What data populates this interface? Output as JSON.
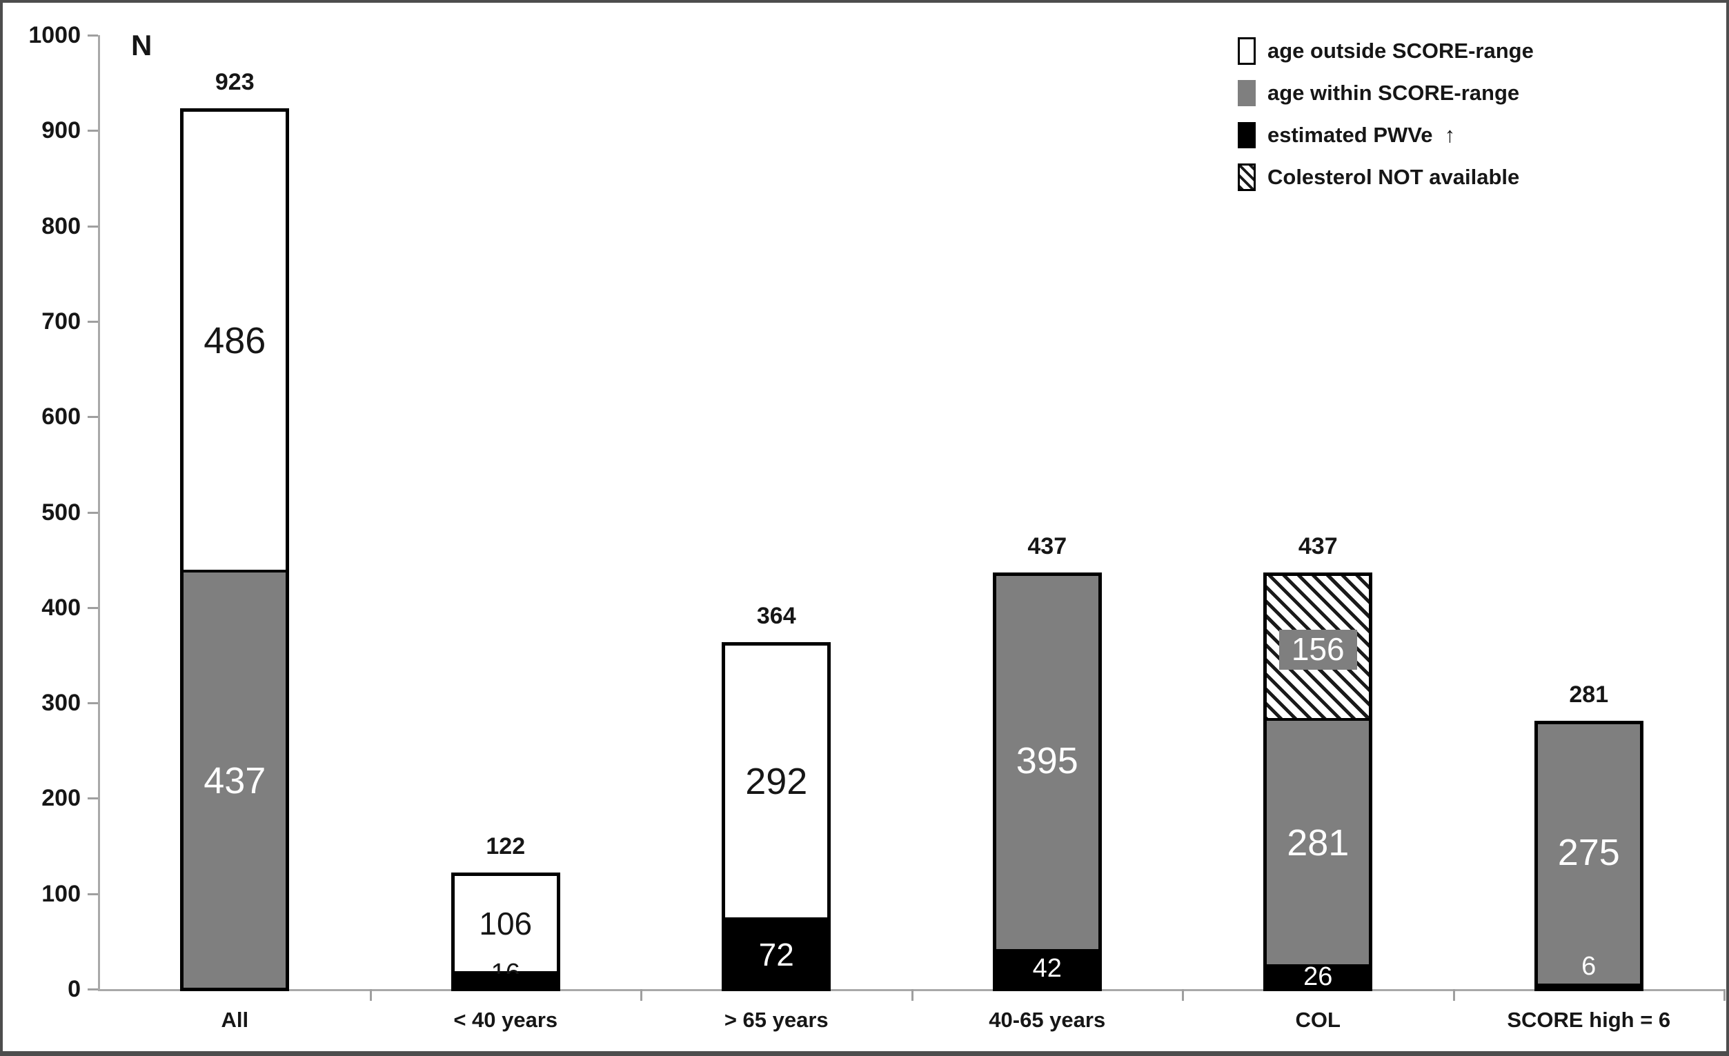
{
  "chart_data": {
    "type": "bar",
    "stacked": true,
    "title": "",
    "xlabel": "",
    "ylabel": "N",
    "ylim": [
      0,
      1000
    ],
    "ytick_step": 100,
    "yticks": [
      0,
      100,
      200,
      300,
      400,
      500,
      600,
      700,
      800,
      900,
      1000
    ],
    "grid": false,
    "legend_position": "top-right",
    "categories": [
      "All",
      "< 40 years",
      "> 65 years",
      "40-65 years",
      "COL",
      "SCORE high = 6"
    ],
    "legend": [
      {
        "key": "outside",
        "label": "age outside SCORE-range"
      },
      {
        "key": "within",
        "label": "age within SCORE-range"
      },
      {
        "key": "pwve",
        "label": "estimated PWVe  ↑"
      },
      {
        "key": "cholna",
        "label": "Colesterol NOT available"
      }
    ],
    "colors": {
      "outside": "#ffffff",
      "within": "#7f7f7f",
      "pwve": "#000000",
      "cholna_hatch": "#1a1a1a",
      "bar_border": "#000000",
      "axis_line": "#a9a9a9",
      "text": "#161616"
    },
    "bars": [
      {
        "category": "All",
        "total": 923,
        "segments": [
          {
            "key": "within",
            "value": 437,
            "height_units": 437,
            "label_pos": "in"
          },
          {
            "key": "outside",
            "value": 486,
            "height_units": 486,
            "label_pos": "in"
          }
        ]
      },
      {
        "category": "< 40 years",
        "total": 122,
        "segments": [
          {
            "key": "pwve",
            "value": 16,
            "height_units": 16,
            "label_pos": "straddle"
          },
          {
            "key": "outside",
            "value": 106,
            "height_units": 106,
            "label_pos": "in"
          }
        ]
      },
      {
        "category": "> 65 years",
        "total": 364,
        "segments": [
          {
            "key": "pwve",
            "value": 72,
            "height_units": 72,
            "label_pos": "in"
          },
          {
            "key": "outside",
            "value": 292,
            "height_units": 292,
            "label_pos": "in"
          }
        ]
      },
      {
        "category": "40-65 years",
        "total": 437,
        "segments": [
          {
            "key": "pwve",
            "value": 42,
            "height_units": 42,
            "label_pos": "in"
          },
          {
            "key": "within",
            "value": 395,
            "height_units": 395,
            "label_pos": "in"
          }
        ]
      },
      {
        "category": "COL",
        "total": 437,
        "segments": [
          {
            "key": "pwve",
            "value": 26,
            "height_units": 26,
            "label_pos": "in"
          },
          {
            "key": "within",
            "value": 281,
            "height_units": 255,
            "label_pos": "in"
          },
          {
            "key": "cholna",
            "value": 156,
            "height_units": 156,
            "label_pos": "in",
            "chip": true
          }
        ]
      },
      {
        "category": "SCORE high = 6",
        "total": 281,
        "segments": [
          {
            "key": "pwve",
            "value": 6,
            "height_units": 6,
            "label_pos": "above"
          },
          {
            "key": "within",
            "value": 275,
            "height_units": 275,
            "label_pos": "in"
          }
        ]
      }
    ]
  }
}
